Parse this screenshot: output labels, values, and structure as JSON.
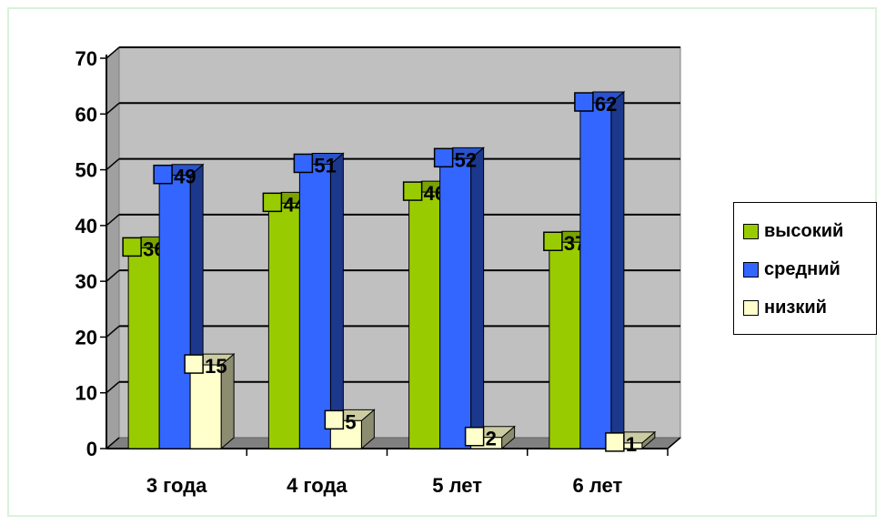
{
  "chart_data": {
    "type": "bar",
    "categories": [
      "3 года",
      "4 года",
      "5 лет",
      "6 лет"
    ],
    "series": [
      {
        "name": "высокий",
        "values": [
          36,
          44,
          46,
          37
        ],
        "color": "#99cc00"
      },
      {
        "name": "средний",
        "values": [
          49,
          51,
          52,
          62
        ],
        "color": "#3366ff"
      },
      {
        "name": "низкий",
        "values": [
          15,
          5,
          2,
          1
        ],
        "color": "#ffffcc"
      }
    ],
    "y_ticks": [
      "0",
      "10",
      "20",
      "30",
      "40",
      "50",
      "60",
      "70"
    ],
    "ylim": [
      0,
      70
    ],
    "grid": true,
    "legend_position": "right",
    "plot_background": "#c0c0c0",
    "data_labels": true,
    "style": "3d-clustered-column"
  }
}
